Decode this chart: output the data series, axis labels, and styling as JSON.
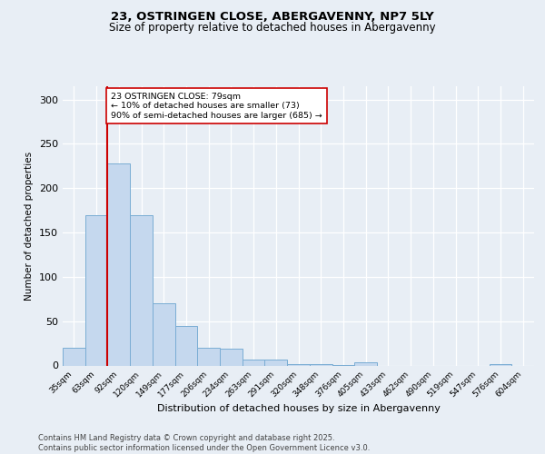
{
  "title_line1": "23, OSTRINGEN CLOSE, ABERGAVENNY, NP7 5LY",
  "title_line2": "Size of property relative to detached houses in Abergavenny",
  "xlabel": "Distribution of detached houses by size in Abergavenny",
  "ylabel": "Number of detached properties",
  "categories": [
    "35sqm",
    "63sqm",
    "92sqm",
    "120sqm",
    "149sqm",
    "177sqm",
    "206sqm",
    "234sqm",
    "263sqm",
    "291sqm",
    "320sqm",
    "348sqm",
    "376sqm",
    "405sqm",
    "433sqm",
    "462sqm",
    "490sqm",
    "519sqm",
    "547sqm",
    "576sqm",
    "604sqm"
  ],
  "values": [
    20,
    170,
    228,
    170,
    70,
    45,
    20,
    19,
    7,
    7,
    2,
    2,
    1,
    4,
    0,
    0,
    0,
    0,
    0,
    2,
    0
  ],
  "bar_color": "#c5d8ee",
  "bar_edge_color": "#7aadd4",
  "vline_x": 1.5,
  "vline_color": "#cc0000",
  "annotation_text": "23 OSTRINGEN CLOSE: 79sqm\n← 10% of detached houses are smaller (73)\n90% of semi-detached houses are larger (685) →",
  "annotation_box_color": "#ffffff",
  "annotation_box_edge": "#cc0000",
  "ylim": [
    0,
    315
  ],
  "yticks": [
    0,
    50,
    100,
    150,
    200,
    250,
    300
  ],
  "footnote": "Contains HM Land Registry data © Crown copyright and database right 2025.\nContains public sector information licensed under the Open Government Licence v3.0.",
  "bg_color": "#e8eef5",
  "plot_bg_color": "#e8eef5",
  "grid_color": "#ffffff",
  "title1_fontsize": 9.5,
  "title2_fontsize": 8.5,
  "xlabel_fontsize": 8.0,
  "ylabel_fontsize": 7.5,
  "xtick_fontsize": 6.5,
  "ytick_fontsize": 8.0,
  "annot_fontsize": 6.8,
  "footnote_fontsize": 6.0,
  "footnote_color": "#444444"
}
